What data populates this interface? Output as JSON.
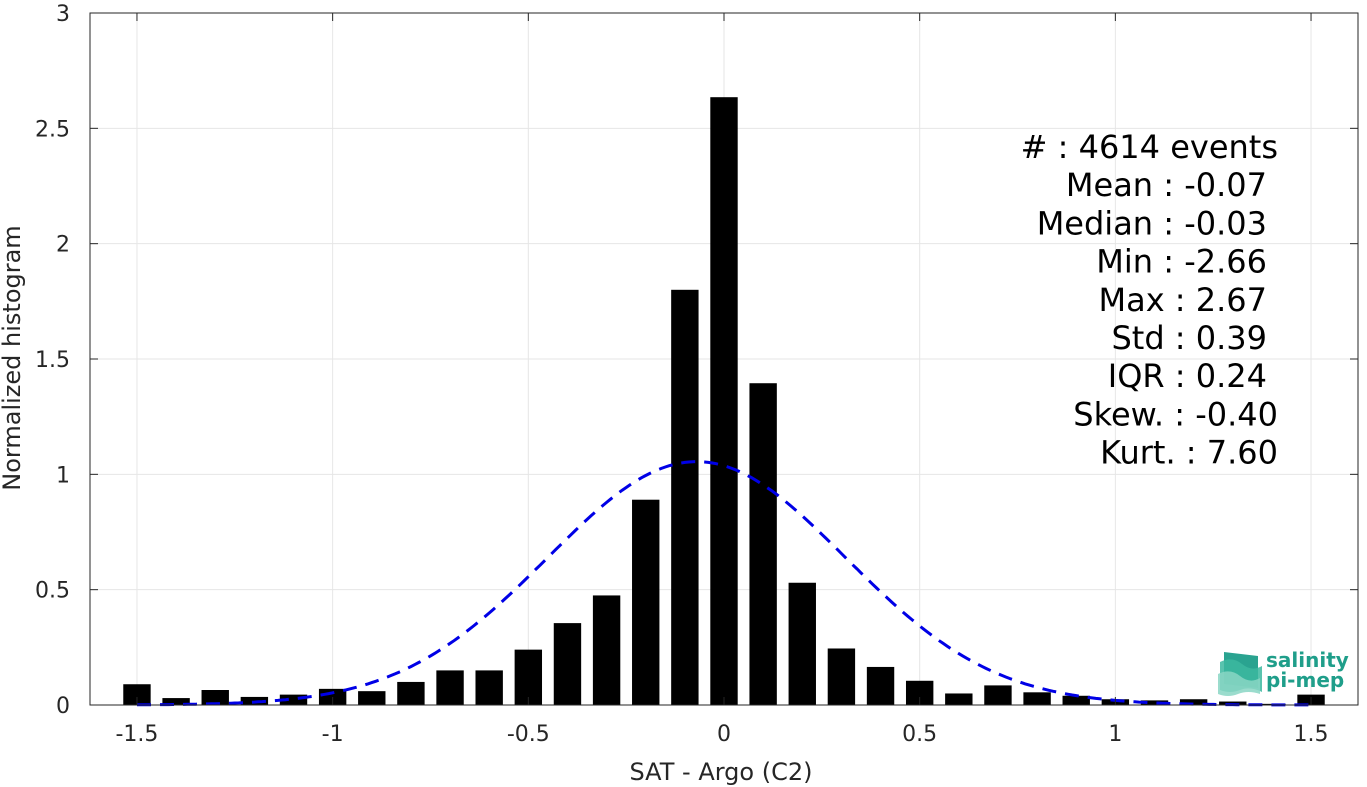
{
  "chart_data": {
    "type": "bar",
    "xlabel": "SAT - Argo (C2)",
    "ylabel": "Normalized histogram",
    "xlim": [
      -1.62,
      1.62
    ],
    "ylim": [
      0,
      3
    ],
    "xticks": [
      -1.5,
      -1,
      -0.5,
      0,
      0.5,
      1,
      1.5
    ],
    "xtick_labels": [
      "-1.5",
      "-1",
      "-0.5",
      "0",
      "0.5",
      "1",
      "1.5"
    ],
    "yticks": [
      0,
      0.5,
      1,
      1.5,
      2,
      2.5,
      3
    ],
    "ytick_labels": [
      "0",
      "0.5",
      "1",
      "1.5",
      "2",
      "2.5",
      "3"
    ],
    "grid": true,
    "bin_width": 0.1,
    "bars": {
      "color": "#000000",
      "x": [
        -1.5,
        -1.4,
        -1.3,
        -1.2,
        -1.1,
        -1.0,
        -0.9,
        -0.8,
        -0.7,
        -0.6,
        -0.5,
        -0.4,
        -0.3,
        -0.2,
        -0.1,
        0.0,
        0.1,
        0.2,
        0.3,
        0.4,
        0.5,
        0.6,
        0.7,
        0.8,
        0.9,
        1.0,
        1.1,
        1.2,
        1.3,
        1.4,
        1.5
      ],
      "values": [
        0.09,
        0.03,
        0.065,
        0.035,
        0.045,
        0.07,
        0.06,
        0.1,
        0.15,
        0.15,
        0.24,
        0.355,
        0.475,
        0.89,
        1.8,
        2.635,
        1.395,
        0.53,
        0.245,
        0.165,
        0.105,
        0.05,
        0.085,
        0.055,
        0.04,
        0.025,
        0.02,
        0.025,
        0.015,
        0.005,
        0.045
      ]
    },
    "fit_curve": {
      "type": "gaussian",
      "style": "dashed",
      "color": "#0000e6",
      "mean": -0.07,
      "std": 0.38,
      "peak": 1.055
    },
    "stats": [
      {
        "label": "#  : 4614 events"
      },
      {
        "label": "Mean : -0.07"
      },
      {
        "label": "Median : -0.03"
      },
      {
        "label": "Min : -2.66"
      },
      {
        "label": "Max : 2.67"
      },
      {
        "label": "Std : 0.39"
      },
      {
        "label": "IQR : 0.24"
      },
      {
        "label": "Skew. : -0.40"
      },
      {
        "label": "Kurt. : 7.60"
      }
    ]
  },
  "logo": {
    "line1": "salinity",
    "line2": "pi-mep",
    "color": "#1f9e8a"
  }
}
